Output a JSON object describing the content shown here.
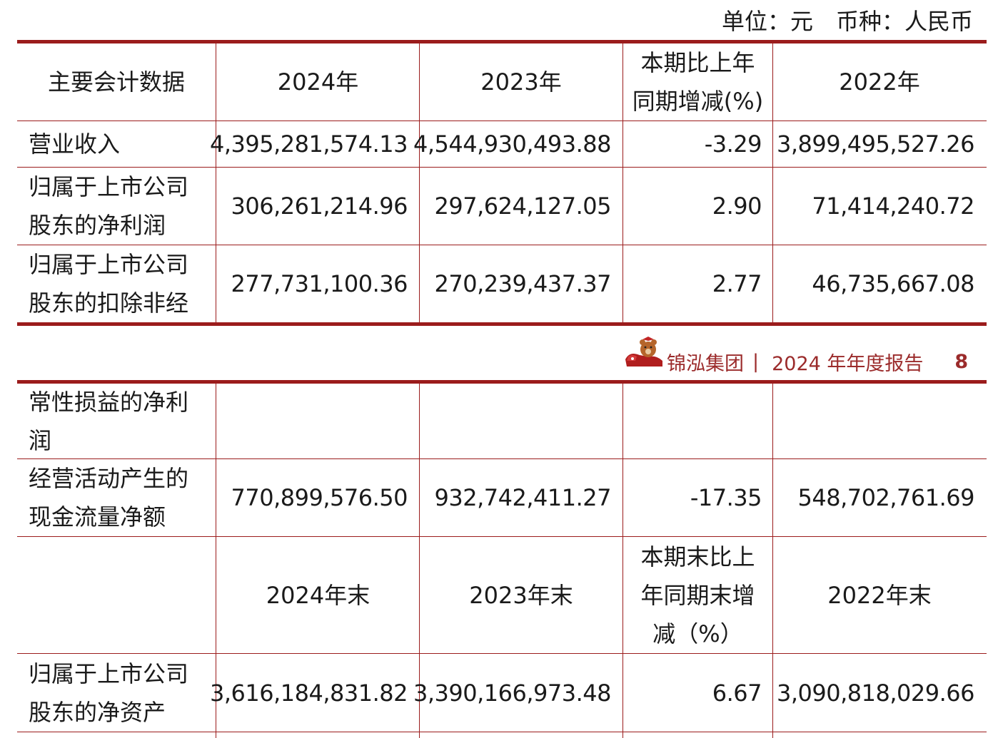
{
  "unit_line": "单位：元　币种：人民币",
  "header": {
    "col0": "主要会计数据",
    "col1": "2024年",
    "col2": "2023年",
    "col3_line1": "本期比上年",
    "col3_line2": "同期增减(%)",
    "col4": "2022年"
  },
  "rows_page1": [
    {
      "label_1": "营业收入",
      "v2024": "4,395,281,574.13",
      "v2023": "4,544,930,493.88",
      "change": "-3.29",
      "v2022": "3,899,495,527.26"
    },
    {
      "label_1": "归属于上市公司",
      "label_2": "股东的净利润",
      "v2024": "306,261,214.96",
      "v2023": "297,624,127.05",
      "change": "2.90",
      "v2022": "71,414,240.72"
    },
    {
      "label_1": "归属于上市公司",
      "label_2": "股东的扣除非经",
      "v2024": "277,731,100.36",
      "v2023": "270,239,437.37",
      "change": "2.77",
      "v2022": "46,735,667.08"
    }
  ],
  "footer": {
    "company": "锦泓集团",
    "separator": "|",
    "report": "2024 年年度报告",
    "page": "8"
  },
  "rows_page2": [
    {
      "label_1": "常性损益的净利",
      "label_2": "润"
    },
    {
      "label_1": "经营活动产生的",
      "label_2": "现金流量净额",
      "v2024": "770,899,576.50",
      "v2023": "932,742,411.27",
      "change": "-17.35",
      "v2022": "548,702,761.69"
    }
  ],
  "header2": {
    "col1": "2024年末",
    "col2": "2023年末",
    "col3_line1": "本期末比上",
    "col3_line2": "年同期末增",
    "col3_line3": "减（%）",
    "col4": "2022年末"
  },
  "rows_page2b": [
    {
      "label_1": "归属于上市公司",
      "label_2": "股东的净资产",
      "v2024": "3,616,184,831.82",
      "v2023": "3,390,166,973.48",
      "change": "6.67",
      "v2022": "3,090,818,029.66"
    }
  ],
  "colors": {
    "accent": "#9b1c1c",
    "footer_text": "#9b2b2b"
  },
  "icons": [
    "bear-mascot-logo"
  ]
}
